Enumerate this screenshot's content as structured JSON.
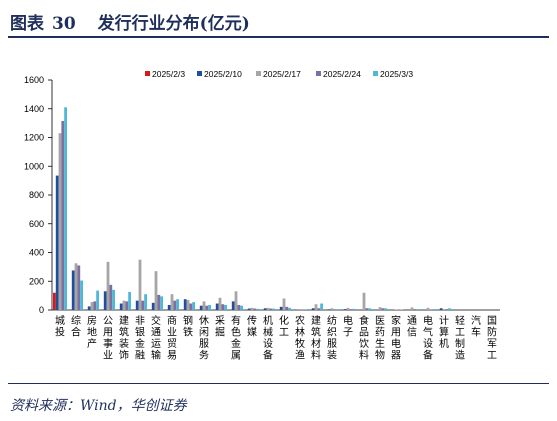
{
  "header": {
    "label": "图表",
    "number": "30",
    "title": "发行行业分布(亿元)"
  },
  "footer": {
    "source": "资料来源：Wind，华创证券"
  },
  "chart_data": {
    "type": "bar",
    "title": "",
    "xlabel": "",
    "ylabel": "",
    "ylim": [
      0,
      1600
    ],
    "yticks": [
      0,
      200,
      400,
      600,
      800,
      1000,
      1200,
      1400,
      1600
    ],
    "grid": false,
    "legend_position": "top",
    "categories": [
      "城投",
      "综合",
      "房地产",
      "公用事业",
      "建筑装饰",
      "非银金融",
      "交通运输",
      "商业贸易",
      "钢铁",
      "休闲服务",
      "采掘",
      "有色金属",
      "传媒",
      "机械设备",
      "化工",
      "农林牧渔",
      "建筑材料",
      "纺织服装",
      "电子",
      "食品饮料",
      "医药生物",
      "家用电器",
      "通信",
      "电气设备",
      "计算机",
      "轻工制造",
      "汽车",
      "国防军工"
    ],
    "series": [
      {
        "name": "2025/2/3",
        "color": "#d7191c",
        "values": [
          120,
          0,
          0,
          0,
          0,
          0,
          0,
          0,
          0,
          0,
          0,
          0,
          0,
          0,
          0,
          0,
          0,
          0,
          0,
          0,
          0,
          0,
          0,
          0,
          0,
          0,
          0,
          0
        ]
      },
      {
        "name": "2025/2/10",
        "color": "#1f4e9a",
        "values": [
          935,
          275,
          25,
          130,
          45,
          65,
          50,
          35,
          75,
          30,
          45,
          60,
          10,
          12,
          22,
          3,
          12,
          5,
          6,
          0,
          3,
          0,
          0,
          3,
          12,
          0,
          0,
          0
        ]
      },
      {
        "name": "2025/2/17",
        "color": "#a6a6a6",
        "values": [
          1230,
          325,
          55,
          335,
          65,
          350,
          270,
          110,
          70,
          60,
          85,
          130,
          15,
          15,
          80,
          6,
          40,
          12,
          15,
          120,
          20,
          3,
          18,
          15,
          6,
          0,
          0,
          0
        ]
      },
      {
        "name": "2025/2/24",
        "color": "#7e6fa0",
        "values": [
          1315,
          310,
          60,
          175,
          60,
          65,
          105,
          65,
          45,
          30,
          40,
          35,
          10,
          10,
          22,
          4,
          12,
          5,
          6,
          12,
          12,
          3,
          6,
          4,
          6,
          0,
          0,
          0
        ]
      },
      {
        "name": "2025/3/3",
        "color": "#4fb8d6",
        "values": [
          1410,
          205,
          135,
          140,
          125,
          110,
          95,
          75,
          55,
          35,
          35,
          30,
          8,
          10,
          15,
          5,
          45,
          6,
          8,
          12,
          12,
          3,
          6,
          6,
          12,
          0,
          0,
          0
        ]
      }
    ]
  }
}
